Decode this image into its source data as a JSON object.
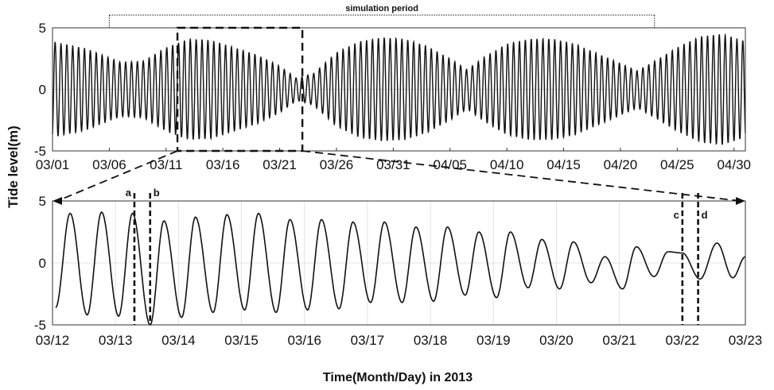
{
  "chart_data": [
    {
      "panel": "top",
      "type": "line",
      "xlabel": "",
      "ylabel": "",
      "x_tick_labels": [
        "03/01",
        "03/06",
        "03/11",
        "03/16",
        "03/21",
        "03/26",
        "03/31",
        "04/05",
        "04/10",
        "04/15",
        "04/20",
        "04/25",
        "04/30"
      ],
      "x_range_days": [
        0,
        61
      ],
      "ylim": [
        -5,
        5
      ],
      "y_ticks": [
        -5,
        0,
        5
      ],
      "simulation_period": {
        "label": "simulation period",
        "start_day": 5,
        "end_day": 53
      },
      "zoom_box": {
        "start_day": 11,
        "end_day": 22,
        "ymin": -5,
        "ymax": 5
      },
      "series": [
        {
          "amplitude_envelope": [
            [
              0,
              3.9
            ],
            [
              3,
              3.3
            ],
            [
              6,
              2.2
            ],
            [
              8,
              2.3
            ],
            [
              10,
              3.4
            ],
            [
              12,
              4.1
            ],
            [
              14,
              4.0
            ],
            [
              16,
              3.4
            ],
            [
              18,
              2.8
            ],
            [
              20,
              1.9
            ],
            [
              21.5,
              0.9
            ],
            [
              23,
              1.3
            ],
            [
              25,
              3.0
            ],
            [
              27,
              3.9
            ],
            [
              29,
              4.2
            ],
            [
              31,
              4.1
            ],
            [
              33,
              3.5
            ],
            [
              35,
              2.5
            ],
            [
              36.5,
              1.6
            ],
            [
              38,
              2.6
            ],
            [
              40,
              3.7
            ],
            [
              42,
              4.1
            ],
            [
              44,
              4.1
            ],
            [
              46,
              3.7
            ],
            [
              48,
              2.9
            ],
            [
              50,
              2.1
            ],
            [
              51.5,
              1.5
            ],
            [
              53,
              2.3
            ],
            [
              55,
              3.4
            ],
            [
              57,
              4.3
            ],
            [
              59,
              4.5
            ],
            [
              61,
              3.9
            ]
          ]
        }
      ]
    },
    {
      "panel": "bottom",
      "type": "line",
      "xlabel": "Time(Month/Day) in 2013",
      "ylabel": "Tide level(m)",
      "x_tick_labels": [
        "03/12",
        "03/13",
        "03/14",
        "03/15",
        "03/16",
        "03/17",
        "03/18",
        "03/19",
        "03/20",
        "03/21",
        "03/22",
        "03/23"
      ],
      "x_range_days": [
        0,
        11
      ],
      "ylim": [
        -5,
        5
      ],
      "y_ticks": [
        -5,
        0,
        5
      ],
      "grid": true,
      "markers": [
        {
          "label": "a",
          "day": 1.3
        },
        {
          "label": "b",
          "day": 1.55
        },
        {
          "label": "c",
          "day": 10.0
        },
        {
          "label": "d",
          "day": 10.25
        }
      ],
      "series": [
        {
          "peaks": [
            [
              0.05,
              -3.6
            ],
            [
              0.28,
              4.0
            ],
            [
              0.55,
              -4.2
            ],
            [
              0.78,
              4.1
            ],
            [
              1.05,
              -4.3
            ],
            [
              1.27,
              4.0
            ],
            [
              1.55,
              -5.0
            ],
            [
              1.77,
              3.4
            ],
            [
              2.05,
              -4.4
            ],
            [
              2.27,
              3.7
            ],
            [
              2.55,
              -4.0
            ],
            [
              2.77,
              3.9
            ],
            [
              3.05,
              -3.8
            ],
            [
              3.27,
              4.0
            ],
            [
              3.55,
              -4.0
            ],
            [
              3.77,
              3.5
            ],
            [
              4.05,
              -3.8
            ],
            [
              4.27,
              3.5
            ],
            [
              4.55,
              -3.7
            ],
            [
              4.77,
              3.3
            ],
            [
              5.05,
              -3.2
            ],
            [
              5.27,
              3.3
            ],
            [
              5.55,
              -3.2
            ],
            [
              5.77,
              2.9
            ],
            [
              6.05,
              -3.1
            ],
            [
              6.27,
              2.9
            ],
            [
              6.55,
              -2.6
            ],
            [
              6.77,
              2.5
            ],
            [
              7.05,
              -2.8
            ],
            [
              7.27,
              2.5
            ],
            [
              7.55,
              -2.0
            ],
            [
              7.77,
              1.9
            ],
            [
              8.05,
              -2.1
            ],
            [
              8.27,
              1.7
            ],
            [
              8.55,
              -1.6
            ],
            [
              8.77,
              0.5
            ],
            [
              9.05,
              -2.1
            ],
            [
              9.27,
              1.3
            ],
            [
              9.55,
              -1.1
            ],
            [
              9.77,
              0.9
            ],
            [
              10.0,
              0.8
            ],
            [
              10.28,
              -1.3
            ],
            [
              10.55,
              1.6
            ],
            [
              10.8,
              -1.2
            ],
            [
              11.0,
              0.5
            ]
          ]
        }
      ]
    }
  ],
  "labels": {
    "ylabel": "Tide level(m)",
    "xlabel": "Time(Month/Day) in 2013",
    "simulation": "simulation period"
  }
}
